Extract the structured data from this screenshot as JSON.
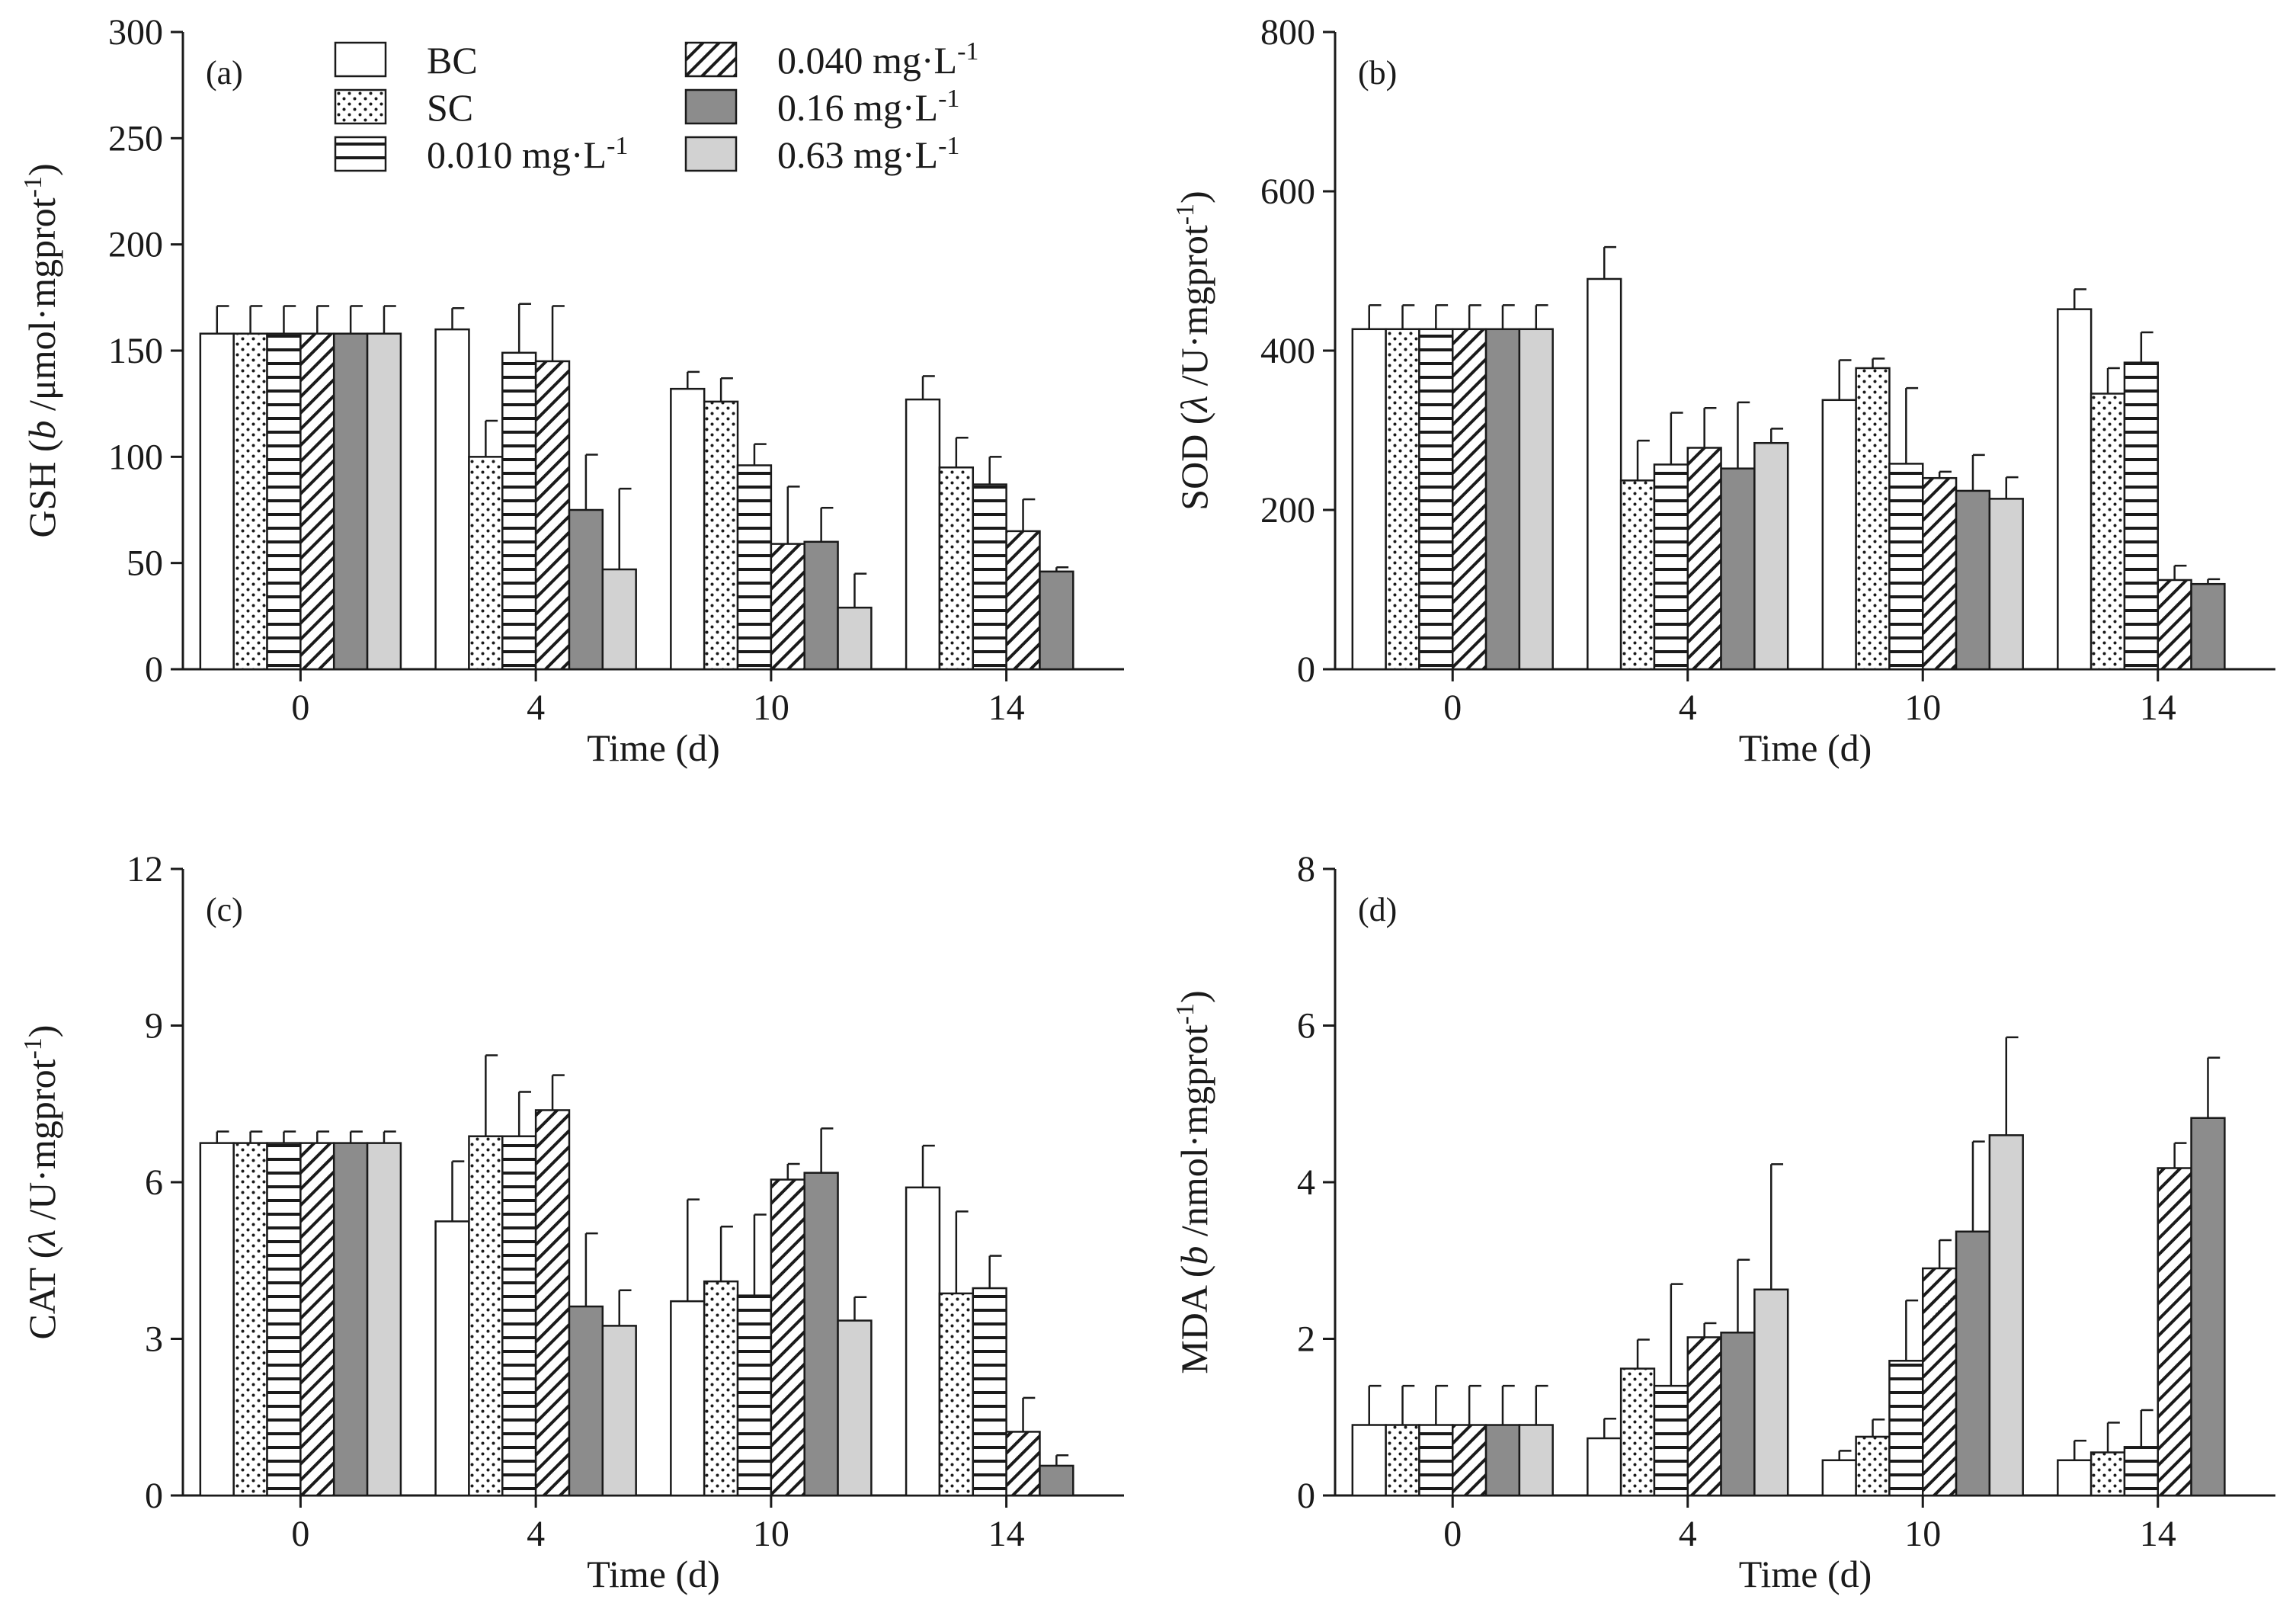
{
  "figure": {
    "legend": [
      {
        "key": "BC",
        "label": "BC",
        "fill": "white"
      },
      {
        "key": "SC",
        "label": "SC",
        "fill": "dots"
      },
      {
        "key": "c010",
        "label": "0.010 mg·L",
        "sup": "-1",
        "fill": "hlines"
      },
      {
        "key": "c040",
        "label": "0.040 mg·L",
        "sup": "-1",
        "fill": "diag"
      },
      {
        "key": "c16",
        "label": "0.16 mg·L",
        "sup": "-1",
        "fill": "darkgray"
      },
      {
        "key": "c63",
        "label": "0.63 mg·L",
        "sup": "-1",
        "fill": "lightgray"
      }
    ]
  },
  "chart_data": [
    {
      "id": "a",
      "type": "bar",
      "panel_label": "(a)",
      "xlabel": "Time (d)",
      "ylabel_parts": [
        {
          "t": "GSH ("
        },
        {
          "t": "b",
          "italic": true
        },
        {
          "t": " /μmol·mgprot"
        },
        {
          "t": "-1",
          "sup": true
        },
        {
          "t": ")"
        }
      ],
      "categories": [
        "0",
        "4",
        "10",
        "14"
      ],
      "ylim": [
        0,
        300
      ],
      "yticks": [
        0,
        50,
        100,
        150,
        200,
        250,
        300
      ],
      "series": [
        {
          "name": "BC",
          "values": [
            158,
            160,
            132,
            127
          ],
          "errors": [
            13,
            10,
            8,
            11
          ]
        },
        {
          "name": "SC",
          "values": [
            158,
            100,
            126,
            95
          ],
          "errors": [
            13,
            17,
            11,
            14
          ]
        },
        {
          "name": "0.010 mg·L-1",
          "values": [
            158,
            149,
            96,
            87
          ],
          "errors": [
            13,
            23,
            10,
            13
          ]
        },
        {
          "name": "0.040 mg·L-1",
          "values": [
            158,
            145,
            59,
            65
          ],
          "errors": [
            13,
            26,
            27,
            15
          ]
        },
        {
          "name": "0.16 mg·L-1",
          "values": [
            158,
            75,
            60,
            46
          ],
          "errors": [
            13,
            26,
            16,
            2
          ]
        },
        {
          "name": "0.63 mg·L-1",
          "values": [
            158,
            47,
            29,
            null
          ],
          "errors": [
            13,
            38,
            16,
            null
          ]
        }
      ]
    },
    {
      "id": "b",
      "type": "bar",
      "panel_label": "(b)",
      "xlabel": "Time (d)",
      "ylabel_parts": [
        {
          "t": "SOD ("
        },
        {
          "t": "λ",
          "italic": true
        },
        {
          "t": " /U·mgprot"
        },
        {
          "t": "-1",
          "sup": true
        },
        {
          "t": ")"
        }
      ],
      "categories": [
        "0",
        "4",
        "10",
        "14"
      ],
      "ylim": [
        0,
        800
      ],
      "yticks": [
        0,
        200,
        400,
        600,
        800
      ],
      "series": [
        {
          "name": "BC",
          "values": [
            427,
            490,
            338,
            452
          ],
          "errors": [
            30,
            40,
            50,
            25
          ]
        },
        {
          "name": "SC",
          "values": [
            427,
            237,
            378,
            346
          ],
          "errors": [
            30,
            50,
            12,
            32
          ]
        },
        {
          "name": "0.010 mg·L-1",
          "values": [
            427,
            257,
            258,
            385
          ],
          "errors": [
            30,
            65,
            95,
            38
          ]
        },
        {
          "name": "0.040 mg·L-1",
          "values": [
            427,
            278,
            240,
            112
          ],
          "errors": [
            30,
            50,
            8,
            18
          ]
        },
        {
          "name": "0.16 mg·L-1",
          "values": [
            427,
            252,
            224,
            107
          ],
          "errors": [
            30,
            83,
            45,
            6
          ]
        },
        {
          "name": "0.63 mg·L-1",
          "values": [
            427,
            284,
            214,
            null
          ],
          "errors": [
            30,
            18,
            27,
            null
          ]
        }
      ]
    },
    {
      "id": "c",
      "type": "bar",
      "panel_label": "(c)",
      "xlabel": "Time (d)",
      "ylabel_parts": [
        {
          "t": "CAT ("
        },
        {
          "t": "λ",
          "italic": true
        },
        {
          "t": " /U·mgprot"
        },
        {
          "t": "-1",
          "sup": true
        },
        {
          "t": ")"
        }
      ],
      "categories": [
        "0",
        "4",
        "10",
        "14"
      ],
      "ylim": [
        0,
        12
      ],
      "yticks": [
        0,
        3,
        6,
        9,
        12
      ],
      "series": [
        {
          "name": "BC",
          "values": [
            6.75,
            5.25,
            3.72,
            5.9
          ],
          "errors": [
            0.22,
            1.15,
            1.95,
            0.8
          ]
        },
        {
          "name": "SC",
          "values": [
            6.75,
            6.88,
            4.1,
            3.87
          ],
          "errors": [
            0.22,
            1.55,
            1.05,
            1.57
          ]
        },
        {
          "name": "0.010 mg·L-1",
          "values": [
            6.75,
            6.88,
            3.83,
            3.97
          ],
          "errors": [
            0.22,
            0.85,
            1.55,
            0.62
          ]
        },
        {
          "name": "0.040 mg·L-1",
          "values": [
            6.75,
            7.38,
            6.05,
            1.22
          ],
          "errors": [
            0.22,
            0.67,
            0.3,
            0.65
          ]
        },
        {
          "name": "0.16 mg·L-1",
          "values": [
            6.75,
            3.62,
            6.18,
            0.57
          ],
          "errors": [
            0.22,
            1.4,
            0.85,
            0.2
          ]
        },
        {
          "name": "0.63 mg·L-1",
          "values": [
            6.75,
            3.25,
            3.35,
            null
          ],
          "errors": [
            0.22,
            0.68,
            0.45,
            null
          ]
        }
      ]
    },
    {
      "id": "d",
      "type": "bar",
      "panel_label": "(d)",
      "xlabel": "Time (d)",
      "ylabel_parts": [
        {
          "t": "MDA ("
        },
        {
          "t": "b",
          "italic": true
        },
        {
          "t": " /nmol·mgprot"
        },
        {
          "t": "-1",
          "sup": true
        },
        {
          "t": ")"
        }
      ],
      "categories": [
        "0",
        "4",
        "10",
        "14"
      ],
      "ylim": [
        0,
        8
      ],
      "yticks": [
        0,
        2,
        4,
        6,
        8
      ],
      "series": [
        {
          "name": "BC",
          "values": [
            0.9,
            0.73,
            0.45,
            0.45
          ],
          "errors": [
            0.5,
            0.25,
            0.12,
            0.25
          ]
        },
        {
          "name": "SC",
          "values": [
            0.9,
            1.62,
            0.75,
            0.55
          ],
          "errors": [
            0.5,
            0.37,
            0.22,
            0.38
          ]
        },
        {
          "name": "0.010 mg·L-1",
          "values": [
            0.9,
            1.4,
            1.72,
            0.62
          ],
          "errors": [
            0.5,
            1.3,
            0.77,
            0.47
          ]
        },
        {
          "name": "0.040 mg·L-1",
          "values": [
            0.9,
            2.02,
            2.9,
            4.18
          ],
          "errors": [
            0.5,
            0.18,
            0.36,
            0.32
          ]
        },
        {
          "name": "0.16 mg·L-1",
          "values": [
            0.9,
            2.08,
            3.37,
            4.82
          ],
          "errors": [
            0.5,
            0.93,
            1.15,
            0.77
          ]
        },
        {
          "name": "0.63 mg·L-1",
          "values": [
            0.9,
            2.63,
            4.6,
            null
          ],
          "errors": [
            0.5,
            1.6,
            1.25,
            null
          ]
        }
      ]
    }
  ]
}
